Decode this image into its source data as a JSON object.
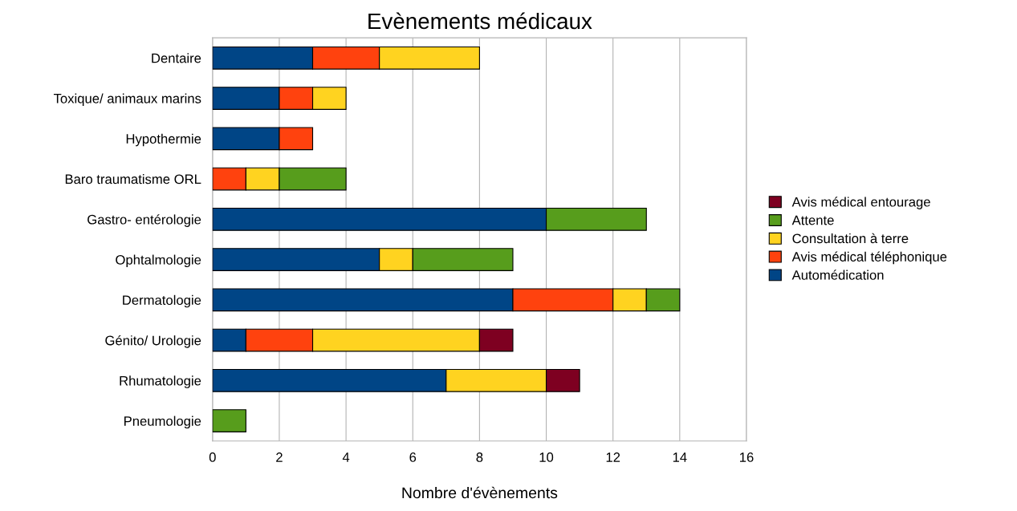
{
  "chart_data": {
    "type": "bar",
    "orientation": "horizontal",
    "stacked": true,
    "title": "Evènements médicaux",
    "xlabel": "Nombre d'évènements",
    "categories": [
      "Dentaire",
      "Toxique/ animaux marins",
      "Hypothermie",
      "Baro traumatisme ORL",
      "Gastro- entérologie",
      "Ophtalmologie",
      "Dermatologie",
      "Génito/ Urologie",
      "Rhumatologie",
      "Pneumologie"
    ],
    "series": [
      {
        "name": "Automédication",
        "color": "#004586",
        "values": [
          3,
          2,
          2,
          null,
          10,
          5,
          9,
          1,
          7,
          null
        ]
      },
      {
        "name": "Avis médical téléphonique",
        "color": "#ff420e",
        "values": [
          2,
          1,
          1,
          1,
          null,
          null,
          3,
          2,
          null,
          null
        ]
      },
      {
        "name": "Consultation à terre",
        "color": "#ffd320",
        "values": [
          3,
          1,
          null,
          1,
          null,
          1,
          1,
          5,
          3,
          null
        ]
      },
      {
        "name": "Attente",
        "color": "#579d1c",
        "values": [
          null,
          null,
          null,
          2,
          3,
          3,
          1,
          null,
          null,
          1
        ]
      },
      {
        "name": "Avis médical entourage",
        "color": "#7e0021",
        "values": [
          null,
          null,
          null,
          null,
          null,
          null,
          null,
          1,
          1,
          null
        ]
      }
    ],
    "xlim": [
      0,
      16
    ],
    "xticks": [
      0,
      2,
      4,
      6,
      8,
      10,
      12,
      14,
      16
    ],
    "grid": "x",
    "legend": "right"
  }
}
